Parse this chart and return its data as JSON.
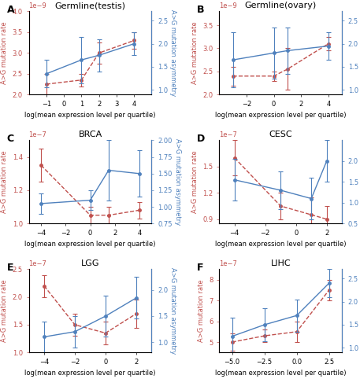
{
  "panels": [
    {
      "label": "A",
      "title": "Germline(testis)",
      "x": [
        -1,
        1,
        2,
        4
      ],
      "red_y": [
        2.25e-09,
        2.35e-09,
        3e-09,
        3.3e-09
      ],
      "red_yerr": [
        2.5e-10,
        1.5e-10,
        2.5e-10,
        2e-10
      ],
      "blue_y": [
        1.35,
        1.65,
        1.75,
        2.0
      ],
      "blue_yerr": [
        0.3,
        0.5,
        0.35,
        0.25
      ],
      "xlim": [
        -2,
        5
      ],
      "xticks": [
        -1,
        0,
        1,
        2,
        3,
        4
      ],
      "red_ylim": [
        2e-09,
        4e-09
      ],
      "red_yticks": [
        2e-09,
        2.5e-09,
        3e-09,
        3.5e-09,
        4e-09
      ],
      "blue_ylim": [
        0.9,
        2.7
      ],
      "blue_yticks": [
        1.0,
        1.5,
        2.0,
        2.5
      ]
    },
    {
      "label": "B",
      "title": "Germline(ovary)",
      "x": [
        -3,
        0,
        1,
        4
      ],
      "red_y": [
        2.4e-09,
        2.4e-09,
        2.55e-09,
        3.1e-09
      ],
      "red_yerr": [
        2e-10,
        1e-10,
        4.5e-10,
        1.5e-10
      ],
      "blue_y": [
        1.65,
        1.8,
        1.85,
        1.95
      ],
      "blue_yerr": [
        0.6,
        0.55,
        0.5,
        0.3
      ],
      "xlim": [
        -4,
        5
      ],
      "xticks": [
        -2,
        0,
        2,
        4
      ],
      "red_ylim": [
        2e-09,
        3.8e-09
      ],
      "red_yticks": [
        2e-09,
        2.5e-09,
        3e-09,
        3.5e-09
      ],
      "blue_ylim": [
        0.9,
        2.7
      ],
      "blue_yticks": [
        1.0,
        1.5,
        2.0,
        2.5
      ]
    },
    {
      "label": "C",
      "title": "BRCA",
      "x": [
        -4,
        0,
        1.5,
        4
      ],
      "red_y": [
        1.35e-07,
        1.05e-07,
        1.05e-07,
        1.08e-07
      ],
      "red_yerr": [
        1e-08,
        5e-09,
        5e-09,
        5e-09
      ],
      "blue_y": [
        1.05,
        1.1,
        1.55,
        1.5
      ],
      "blue_yerr": [
        0.15,
        0.15,
        0.45,
        0.35
      ],
      "xlim": [
        -5,
        5
      ],
      "xticks": [
        -4,
        -2,
        0,
        2,
        4
      ],
      "red_ylim": [
        1e-07,
        1.5e-07
      ],
      "red_yticks": [
        1e-07,
        1.2e-07,
        1.4e-07
      ],
      "blue_ylim": [
        0.75,
        2.0
      ],
      "blue_yticks": [
        0.75,
        1.0,
        1.25,
        1.5,
        1.75,
        2.0
      ]
    },
    {
      "label": "D",
      "title": "CESC",
      "x": [
        -4,
        -1,
        1,
        2
      ],
      "red_y": [
        1.6e-07,
        1.05e-07,
        9.5e-08,
        9e-08
      ],
      "red_yerr": [
        2e-08,
        1.5e-08,
        2e-08,
        1.5e-08
      ],
      "blue_y": [
        1.55,
        1.3,
        1.1,
        2.0
      ],
      "blue_yerr": [
        0.5,
        0.45,
        0.5,
        0.5
      ],
      "xlim": [
        -5,
        3
      ],
      "xticks": [
        -4,
        -2,
        0,
        2
      ],
      "red_ylim": [
        8.5e-08,
        1.8e-07
      ],
      "red_yticks": [
        9e-08,
        1.2e-07,
        1.5e-07
      ],
      "blue_ylim": [
        0.5,
        2.5
      ],
      "blue_yticks": [
        0.5,
        1.0,
        1.5,
        2.0
      ]
    },
    {
      "label": "E",
      "title": "LGG",
      "x": [
        -4,
        -2,
        0,
        2
      ],
      "red_y": [
        2.2e-07,
        1.5e-07,
        1.35e-07,
        1.7e-07
      ],
      "red_yerr": [
        2e-08,
        2e-08,
        2e-08,
        2.5e-08
      ],
      "blue_y": [
        1.1,
        1.2,
        1.5,
        1.85
      ],
      "blue_yerr": [
        0.3,
        0.3,
        0.4,
        0.4
      ],
      "xlim": [
        -5,
        3
      ],
      "xticks": [
        -4,
        -2,
        0,
        2
      ],
      "red_ylim": [
        1e-07,
        2.5e-07
      ],
      "red_yticks": [
        1e-07,
        1.5e-07,
        2e-07,
        2.5e-07
      ],
      "blue_ylim": [
        0.8,
        2.4
      ],
      "blue_yticks": [
        1.0,
        1.5,
        2.0
      ]
    },
    {
      "label": "F",
      "title": "LIHC",
      "x": [
        -5,
        -2.5,
        0,
        2.5
      ],
      "red_y": [
        5e-07,
        5.3e-07,
        5.5e-07,
        7.5e-07
      ],
      "red_yerr": [
        4e-08,
        3e-08,
        5e-08,
        5e-08
      ],
      "blue_y": [
        1.25,
        1.5,
        1.7,
        2.4
      ],
      "blue_yerr": [
        0.4,
        0.35,
        0.35,
        0.3
      ],
      "xlim": [
        -6,
        3.5
      ],
      "xticks": [
        -5.0,
        -2.5,
        0.0,
        2.5
      ],
      "red_ylim": [
        4.5e-07,
        8.5e-07
      ],
      "red_yticks": [
        5e-07,
        6e-07,
        7e-07,
        8e-07
      ],
      "blue_ylim": [
        0.9,
        2.7
      ],
      "blue_yticks": [
        1.0,
        1.5,
        2.0,
        2.5
      ]
    }
  ],
  "red_color": "#c0504d",
  "blue_color": "#4f81bd",
  "xlabel": "log(mean expression level per quartile)",
  "red_ylabel": "A>G mutation rate",
  "blue_ylabel": "A>G mutation asymmetry",
  "title_fontsize": 8,
  "label_fontsize": 7,
  "tick_fontsize": 6,
  "axis_label_fontsize": 6
}
